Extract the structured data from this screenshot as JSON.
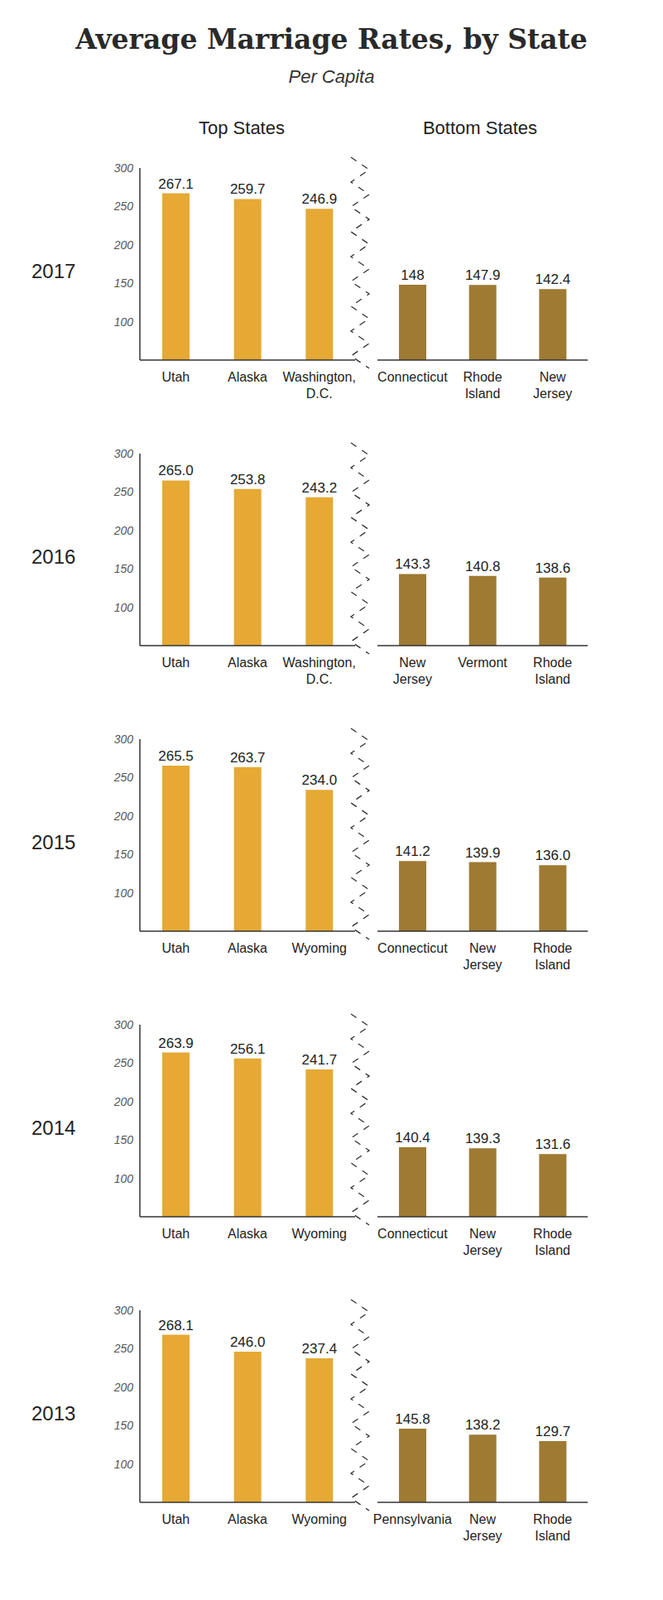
{
  "title": "Average Marriage Rates, by State",
  "subtitle": "Per Capita",
  "column_titles": [
    "Top States",
    "Bottom States"
  ],
  "chart_data": [
    {
      "type": "bar",
      "title": "2017",
      "ylim": [
        50,
        300
      ],
      "yticks": [
        100,
        150,
        200,
        250,
        300
      ],
      "data_labels": true,
      "series": [
        {
          "color": "#E5A934",
          "categories": [
            "Utah",
            "Alaska",
            "Washington, D.C."
          ],
          "values": [
            267.1,
            259.7,
            246.9
          ],
          "value_labels": [
            "267.1",
            "259.7",
            "246.9"
          ]
        },
        {
          "color": "#9E7A33",
          "categories": [
            "Connecticut",
            "Rhode Island",
            "New Jersey"
          ],
          "values": [
            148,
            147.9,
            142.4
          ],
          "value_labels": [
            "148",
            "147.9",
            "142.4"
          ]
        }
      ]
    },
    {
      "type": "bar",
      "title": "2016",
      "ylim": [
        50,
        300
      ],
      "yticks": [
        100,
        150,
        200,
        250,
        300
      ],
      "data_labels": true,
      "series": [
        {
          "color": "#E5A934",
          "categories": [
            "Utah",
            "Alaska",
            "Washington, D.C."
          ],
          "values": [
            265.0,
            253.8,
            243.2
          ],
          "value_labels": [
            "265.0",
            "253.8",
            "243.2"
          ]
        },
        {
          "color": "#9E7A33",
          "categories": [
            "New Jersey",
            "Vermont",
            "Rhode Island"
          ],
          "values": [
            143.3,
            140.8,
            138.6
          ],
          "value_labels": [
            "143.3",
            "140.8",
            "138.6"
          ]
        }
      ]
    },
    {
      "type": "bar",
      "title": "2015",
      "ylim": [
        50,
        300
      ],
      "yticks": [
        100,
        150,
        200,
        250,
        300
      ],
      "data_labels": true,
      "series": [
        {
          "color": "#E5A934",
          "categories": [
            "Utah",
            "Alaska",
            "Wyoming"
          ],
          "values": [
            265.5,
            263.7,
            234.0
          ],
          "value_labels": [
            "265.5",
            "263.7",
            "234.0"
          ]
        },
        {
          "color": "#9E7A33",
          "categories": [
            "Connecticut",
            "New Jersey",
            "Rhode Island"
          ],
          "values": [
            141.2,
            139.9,
            136.0
          ],
          "value_labels": [
            "141.2",
            "139.9",
            "136.0"
          ]
        }
      ]
    },
    {
      "type": "bar",
      "title": "2014",
      "ylim": [
        50,
        300
      ],
      "yticks": [
        100,
        150,
        200,
        250,
        300
      ],
      "data_labels": true,
      "series": [
        {
          "color": "#E5A934",
          "categories": [
            "Utah",
            "Alaska",
            "Wyoming"
          ],
          "values": [
            263.9,
            256.1,
            241.7
          ],
          "value_labels": [
            "263.9",
            "256.1",
            "241.7"
          ]
        },
        {
          "color": "#9E7A33",
          "categories": [
            "Connecticut",
            "New Jersey",
            "Rhode Island"
          ],
          "values": [
            140.4,
            139.3,
            131.6
          ],
          "value_labels": [
            "140.4",
            "139.3",
            "131.6"
          ]
        }
      ]
    },
    {
      "type": "bar",
      "title": "2013",
      "ylim": [
        50,
        300
      ],
      "yticks": [
        100,
        150,
        200,
        250,
        300
      ],
      "data_labels": true,
      "series": [
        {
          "color": "#E5A934",
          "categories": [
            "Utah",
            "Alaska",
            "Wyoming"
          ],
          "values": [
            268.1,
            246.0,
            237.4
          ],
          "value_labels": [
            "268.1",
            "246.0",
            "237.4"
          ]
        },
        {
          "color": "#9E7A33",
          "categories": [
            "Pennsylvania",
            "New Jersey",
            "Rhode Island"
          ],
          "values": [
            145.8,
            138.2,
            129.7
          ],
          "value_labels": [
            "145.8",
            "138.2",
            "129.7"
          ]
        }
      ]
    }
  ]
}
